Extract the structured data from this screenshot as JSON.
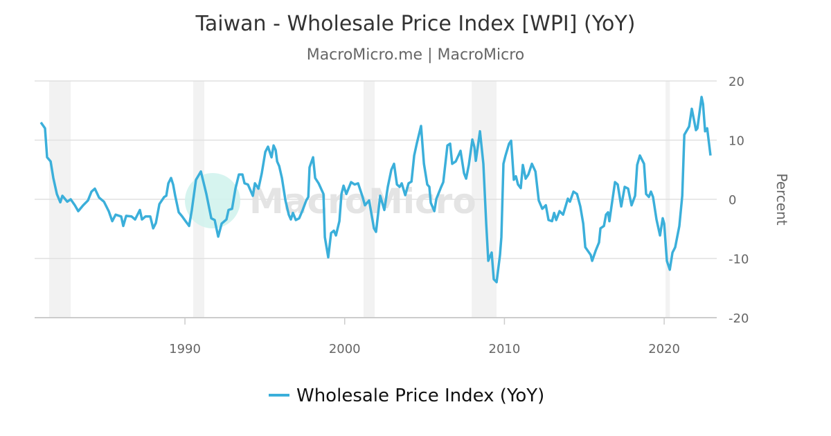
{
  "title": "Taiwan - Wholesale Price Index [WPI] (YoY)",
  "subtitle": "MacroMicro.me | MacroMicro",
  "watermark": "MacroMicro",
  "chart_data": {
    "type": "line",
    "title": "Taiwan - Wholesale Price Index [WPI] (YoY)",
    "ylabel": "Percent",
    "xlim": [
      1980.59,
      2023.29
    ],
    "ylim": [
      -20,
      20
    ],
    "x_ticks": [
      1990,
      2000,
      2010,
      2020
    ],
    "x_tick_labels": [
      "1990",
      "2000",
      "2010",
      "2020"
    ],
    "y_ticks": [
      20,
      10,
      0,
      -10,
      -20
    ],
    "y_tick_labels": [
      "20",
      "10",
      "0",
      "-10",
      "-20"
    ],
    "y_axis_side": "right",
    "grid": true,
    "legend": "bottom",
    "line_color": "#3bafda",
    "recession_color": "#f2f2f2",
    "recessions": [
      [
        1981.5,
        1982.85
      ],
      [
        1990.52,
        1991.21
      ],
      [
        2001.18,
        2001.88
      ],
      [
        2007.95,
        2009.51
      ],
      [
        2020.09,
        2020.35
      ]
    ],
    "series": [
      {
        "name": "Wholesale Price Index (YoY)",
        "points": [
          [
            1980.98,
            13.0
          ],
          [
            1981.24,
            12.0
          ],
          [
            1981.37,
            7.1
          ],
          [
            1981.59,
            6.4
          ],
          [
            1981.76,
            3.6
          ],
          [
            1981.98,
            0.9
          ],
          [
            1982.2,
            -0.5
          ],
          [
            1982.33,
            0.6
          ],
          [
            1982.63,
            -0.4
          ],
          [
            1982.85,
            0.0
          ],
          [
            1983.11,
            -1.0
          ],
          [
            1983.32,
            -2.0
          ],
          [
            1983.63,
            -1.0
          ],
          [
            1983.93,
            -0.2
          ],
          [
            1984.15,
            1.3
          ],
          [
            1984.36,
            1.8
          ],
          [
            1984.62,
            0.3
          ],
          [
            1984.93,
            -0.4
          ],
          [
            1985.23,
            -2.0
          ],
          [
            1985.45,
            -3.7
          ],
          [
            1985.66,
            -2.6
          ],
          [
            1986.01,
            -2.9
          ],
          [
            1986.14,
            -4.5
          ],
          [
            1986.32,
            -2.8
          ],
          [
            1986.66,
            -2.9
          ],
          [
            1986.88,
            -3.4
          ],
          [
            1987.18,
            -1.8
          ],
          [
            1987.31,
            -3.4
          ],
          [
            1987.53,
            -2.9
          ],
          [
            1987.83,
            -2.9
          ],
          [
            1988.01,
            -4.9
          ],
          [
            1988.18,
            -4.0
          ],
          [
            1988.4,
            -0.8
          ],
          [
            1988.7,
            0.4
          ],
          [
            1988.83,
            0.6
          ],
          [
            1988.96,
            2.7
          ],
          [
            1989.13,
            3.6
          ],
          [
            1989.26,
            2.5
          ],
          [
            1989.39,
            0.6
          ],
          [
            1989.61,
            -2.2
          ],
          [
            1989.83,
            -2.9
          ],
          [
            1990.04,
            -3.7
          ],
          [
            1990.26,
            -4.5
          ],
          [
            1990.43,
            -1.8
          ],
          [
            1990.69,
            3.3
          ],
          [
            1991.0,
            4.7
          ],
          [
            1991.34,
            0.9
          ],
          [
            1991.65,
            -3.2
          ],
          [
            1991.86,
            -3.5
          ],
          [
            1992.08,
            -6.3
          ],
          [
            1992.3,
            -4.1
          ],
          [
            1992.6,
            -3.4
          ],
          [
            1992.73,
            -1.8
          ],
          [
            1992.95,
            -1.6
          ],
          [
            1993.16,
            1.8
          ],
          [
            1993.38,
            4.2
          ],
          [
            1993.6,
            4.2
          ],
          [
            1993.73,
            2.7
          ],
          [
            1993.94,
            2.5
          ],
          [
            1994.25,
            0.6
          ],
          [
            1994.38,
            2.7
          ],
          [
            1994.6,
            1.8
          ],
          [
            1994.81,
            4.4
          ],
          [
            1995.03,
            8.0
          ],
          [
            1995.2,
            8.9
          ],
          [
            1995.42,
            7.1
          ],
          [
            1995.55,
            9.1
          ],
          [
            1995.68,
            8.3
          ],
          [
            1995.77,
            6.4
          ],
          [
            1995.9,
            5.6
          ],
          [
            1996.07,
            3.6
          ],
          [
            1996.29,
            -0.2
          ],
          [
            1996.5,
            -2.6
          ],
          [
            1996.63,
            -3.4
          ],
          [
            1996.76,
            -2.3
          ],
          [
            1996.94,
            -3.5
          ],
          [
            1997.15,
            -3.2
          ],
          [
            1997.37,
            -1.8
          ],
          [
            1997.59,
            -0.2
          ],
          [
            1997.72,
            0.4
          ],
          [
            1997.8,
            5.4
          ],
          [
            1998.02,
            7.1
          ],
          [
            1998.15,
            3.6
          ],
          [
            1998.37,
            2.7
          ],
          [
            1998.67,
            0.9
          ],
          [
            1998.76,
            -6.4
          ],
          [
            1998.97,
            -9.8
          ],
          [
            1999.15,
            -5.7
          ],
          [
            1999.32,
            -5.3
          ],
          [
            1999.45,
            -6.1
          ],
          [
            1999.67,
            -3.7
          ],
          [
            1999.8,
            0.9
          ],
          [
            1999.93,
            2.3
          ],
          [
            2000.1,
            0.9
          ],
          [
            2000.4,
            2.9
          ],
          [
            2000.62,
            2.5
          ],
          [
            2000.84,
            2.7
          ],
          [
            2001.1,
            0.6
          ],
          [
            2001.27,
            -1.0
          ],
          [
            2001.53,
            -0.2
          ],
          [
            2001.83,
            -4.9
          ],
          [
            2001.96,
            -5.5
          ],
          [
            2002.22,
            0.6
          ],
          [
            2002.48,
            -1.8
          ],
          [
            2002.7,
            2.1
          ],
          [
            2002.92,
            5.0
          ],
          [
            2003.09,
            6.0
          ],
          [
            2003.27,
            2.5
          ],
          [
            2003.44,
            2.1
          ],
          [
            2003.57,
            2.7
          ],
          [
            2003.79,
            0.7
          ],
          [
            2004.0,
            2.7
          ],
          [
            2004.18,
            3.0
          ],
          [
            2004.35,
            7.4
          ],
          [
            2004.52,
            9.5
          ],
          [
            2004.78,
            12.4
          ],
          [
            2004.96,
            6.0
          ],
          [
            2005.17,
            2.5
          ],
          [
            2005.3,
            2.1
          ],
          [
            2005.39,
            -0.6
          ],
          [
            2005.61,
            -2.0
          ],
          [
            2005.74,
            0.1
          ],
          [
            2006.04,
            2.1
          ],
          [
            2006.17,
            2.9
          ],
          [
            2006.43,
            9.1
          ],
          [
            2006.6,
            9.4
          ],
          [
            2006.73,
            6.0
          ],
          [
            2006.95,
            6.4
          ],
          [
            2007.12,
            7.4
          ],
          [
            2007.25,
            8.2
          ],
          [
            2007.47,
            4.4
          ],
          [
            2007.6,
            3.5
          ],
          [
            2007.77,
            5.8
          ],
          [
            2007.99,
            10.1
          ],
          [
            2008.12,
            8.8
          ],
          [
            2008.21,
            6.5
          ],
          [
            2008.47,
            11.5
          ],
          [
            2008.68,
            6.0
          ],
          [
            2008.86,
            -4.1
          ],
          [
            2008.99,
            -10.4
          ],
          [
            2009.2,
            -9.0
          ],
          [
            2009.33,
            -13.5
          ],
          [
            2009.51,
            -14.0
          ],
          [
            2009.72,
            -9.4
          ],
          [
            2009.81,
            -6.4
          ],
          [
            2009.94,
            6.0
          ],
          [
            2010.07,
            7.4
          ],
          [
            2010.29,
            9.4
          ],
          [
            2010.42,
            9.9
          ],
          [
            2010.59,
            3.3
          ],
          [
            2010.72,
            3.9
          ],
          [
            2010.85,
            2.5
          ],
          [
            2011.02,
            1.9
          ],
          [
            2011.15,
            5.8
          ],
          [
            2011.33,
            3.5
          ],
          [
            2011.5,
            4.2
          ],
          [
            2011.72,
            6.0
          ],
          [
            2011.94,
            4.7
          ],
          [
            2012.15,
            -0.2
          ],
          [
            2012.37,
            -1.6
          ],
          [
            2012.59,
            -1.0
          ],
          [
            2012.76,
            -3.5
          ],
          [
            2012.98,
            -3.7
          ],
          [
            2013.11,
            -2.3
          ],
          [
            2013.24,
            -3.5
          ],
          [
            2013.45,
            -2.0
          ],
          [
            2013.67,
            -2.6
          ],
          [
            2013.97,
            0.1
          ],
          [
            2014.1,
            -0.4
          ],
          [
            2014.32,
            1.3
          ],
          [
            2014.54,
            0.9
          ],
          [
            2014.75,
            -1.2
          ],
          [
            2014.93,
            -4.1
          ],
          [
            2015.06,
            -8.1
          ],
          [
            2015.4,
            -9.4
          ],
          [
            2015.49,
            -10.4
          ],
          [
            2015.71,
            -8.7
          ],
          [
            2015.92,
            -7.3
          ],
          [
            2016.01,
            -4.9
          ],
          [
            2016.23,
            -4.5
          ],
          [
            2016.36,
            -2.6
          ],
          [
            2016.49,
            -2.2
          ],
          [
            2016.57,
            -3.7
          ],
          [
            2016.7,
            -1.2
          ],
          [
            2016.92,
            2.9
          ],
          [
            2017.09,
            2.5
          ],
          [
            2017.31,
            -1.2
          ],
          [
            2017.53,
            2.1
          ],
          [
            2017.74,
            1.8
          ],
          [
            2017.96,
            -1.0
          ],
          [
            2018.18,
            0.6
          ],
          [
            2018.31,
            5.8
          ],
          [
            2018.48,
            7.4
          ],
          [
            2018.74,
            6.0
          ],
          [
            2018.87,
            0.9
          ],
          [
            2019.04,
            0.4
          ],
          [
            2019.17,
            1.3
          ],
          [
            2019.3,
            0.4
          ],
          [
            2019.52,
            -3.4
          ],
          [
            2019.74,
            -6.1
          ],
          [
            2019.91,
            -3.2
          ],
          [
            2020.0,
            -4.1
          ],
          [
            2020.17,
            -10.4
          ],
          [
            2020.35,
            -11.9
          ],
          [
            2020.52,
            -9.0
          ],
          [
            2020.69,
            -8.1
          ],
          [
            2020.95,
            -4.5
          ],
          [
            2021.13,
            0.6
          ],
          [
            2021.26,
            10.9
          ],
          [
            2021.43,
            11.7
          ],
          [
            2021.56,
            12.3
          ],
          [
            2021.73,
            15.3
          ],
          [
            2021.99,
            11.7
          ],
          [
            2022.08,
            12.0
          ],
          [
            2022.34,
            17.3
          ],
          [
            2022.43,
            16.1
          ],
          [
            2022.56,
            11.5
          ],
          [
            2022.69,
            12.0
          ],
          [
            2022.9,
            7.4
          ]
        ]
      }
    ]
  }
}
